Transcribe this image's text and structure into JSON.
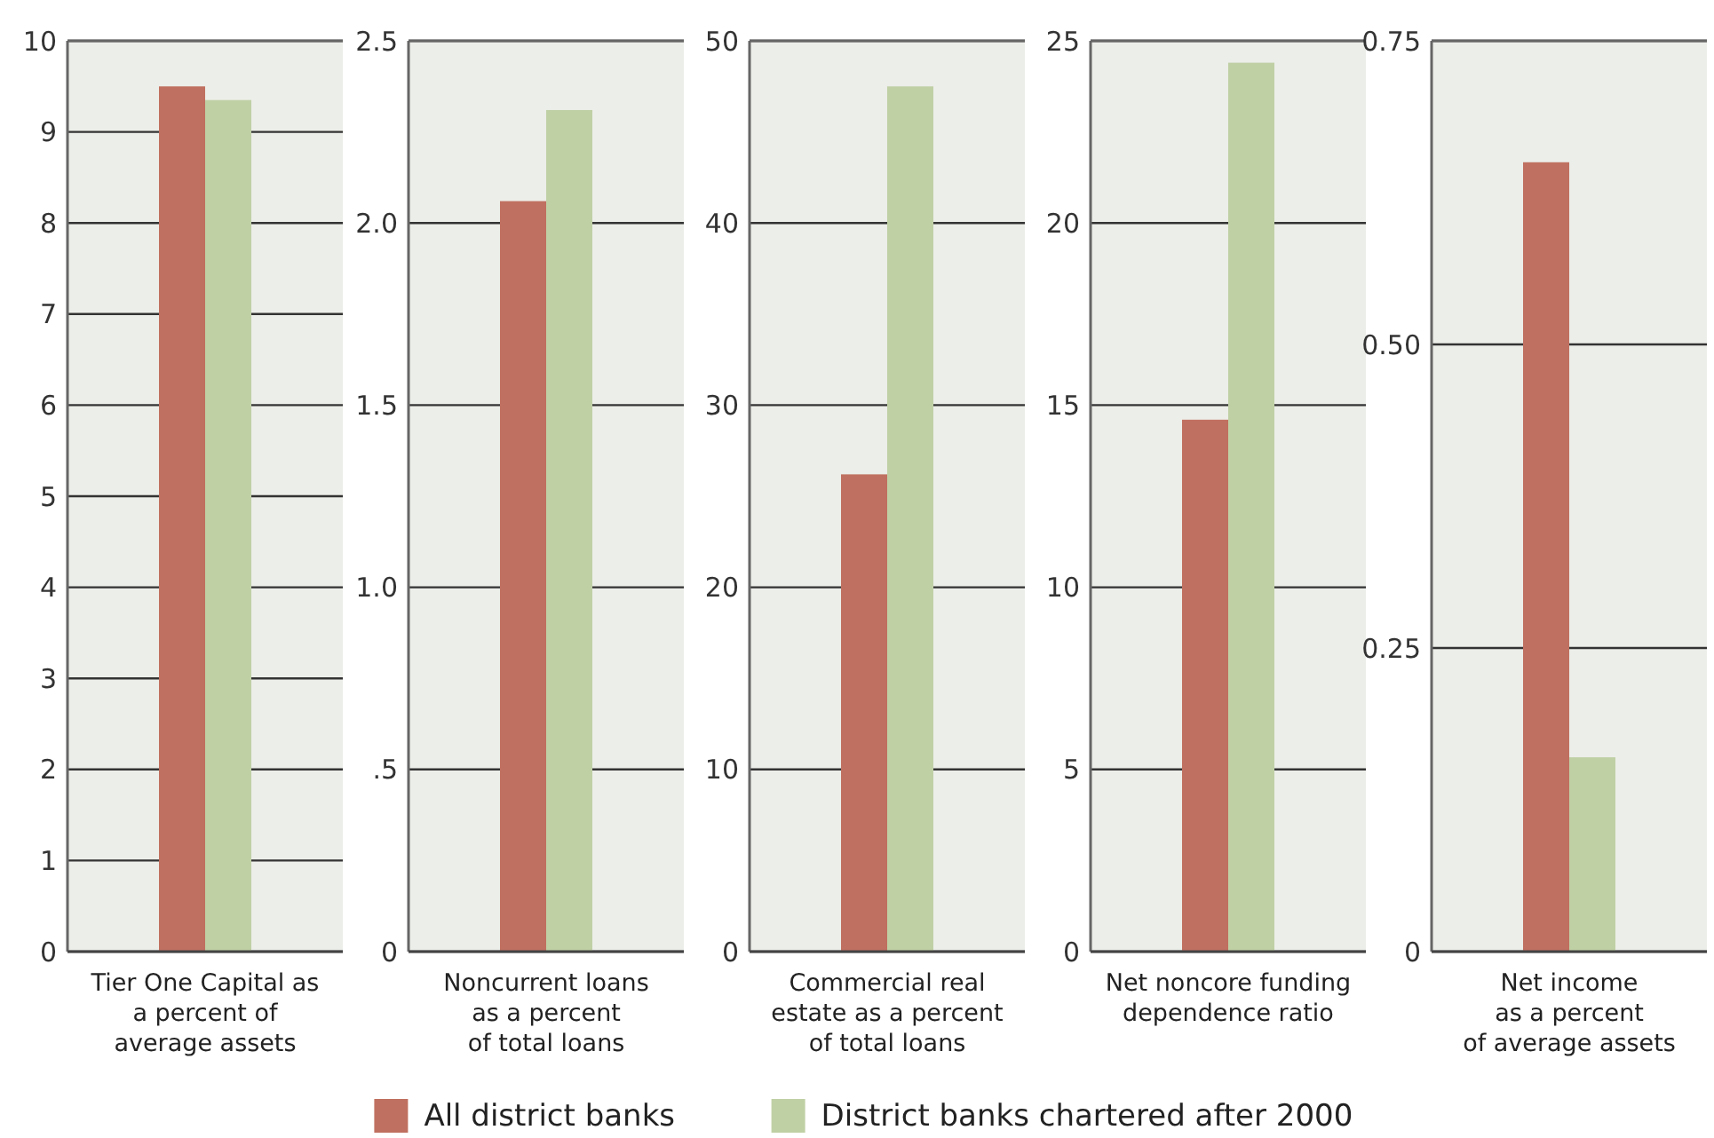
{
  "chart_data": [
    {
      "type": "bar",
      "xlabel": "Tier One Capital as\na percent of\naverage assets",
      "categories": [
        null
      ],
      "ylim": [
        0,
        10
      ],
      "yticks": [
        0,
        1,
        2,
        3,
        4,
        5,
        6,
        7,
        8,
        9,
        10
      ],
      "grid": "y",
      "legend": "bottom",
      "series": [
        {
          "name": "All district banks",
          "color": "#c07060",
          "values": [
            9.5
          ]
        },
        {
          "name": "District banks chartered after 2000",
          "color": "#c0d0a5",
          "values": [
            9.35
          ]
        }
      ]
    },
    {
      "type": "bar",
      "xlabel": "Noncurrent loans\nas a percent\nof total loans",
      "categories": [
        null
      ],
      "ylim": [
        0,
        2.5
      ],
      "yticks": [
        0,
        {
          "value": 0.5,
          "label": ".5"
        },
        {
          "value": 1,
          "label": "1.0"
        },
        1.5,
        {
          "value": 2,
          "label": "2.0"
        },
        2.5
      ],
      "grid": "y",
      "series": [
        {
          "color": "#c07060",
          "values": [
            2.06
          ]
        },
        {
          "color": "#c0d0a5",
          "values": [
            2.31
          ]
        }
      ]
    },
    {
      "type": "bar",
      "xlabel": "Commercial real\nestate as a percent\nof total loans",
      "categories": [
        null
      ],
      "ylim": [
        0,
        50
      ],
      "yticks": [
        0,
        10,
        20,
        30,
        40,
        50
      ],
      "grid": "y",
      "series": [
        {
          "color": "#c07060",
          "values": [
            26.2
          ]
        },
        {
          "color": "#c0d0a5",
          "values": [
            47.5
          ]
        }
      ]
    },
    {
      "type": "bar",
      "xlabel": "Net noncore funding\ndependence ratio",
      "categories": [
        null
      ],
      "ylim": [
        0,
        25
      ],
      "yticks": [
        0,
        5,
        10,
        15,
        20,
        25
      ],
      "grid": "y",
      "series": [
        {
          "color": "#c07060",
          "values": [
            14.6
          ]
        },
        {
          "color": "#c0d0a5",
          "values": [
            24.4
          ]
        }
      ]
    },
    {
      "type": "bar",
      "xlabel": "Net income\nas a percent\nof average assets",
      "categories": [
        null
      ],
      "ylim": [
        0,
        0.75
      ],
      "yticks": [
        0,
        0.25,
        {
          "value": 0.5,
          "label": "0.50"
        },
        0.75
      ],
      "grid": "y",
      "series": [
        {
          "color": "#c07060",
          "values": [
            0.65
          ]
        },
        {
          "color": "#c0d0a5",
          "values": [
            0.16
          ]
        }
      ]
    }
  ]
}
